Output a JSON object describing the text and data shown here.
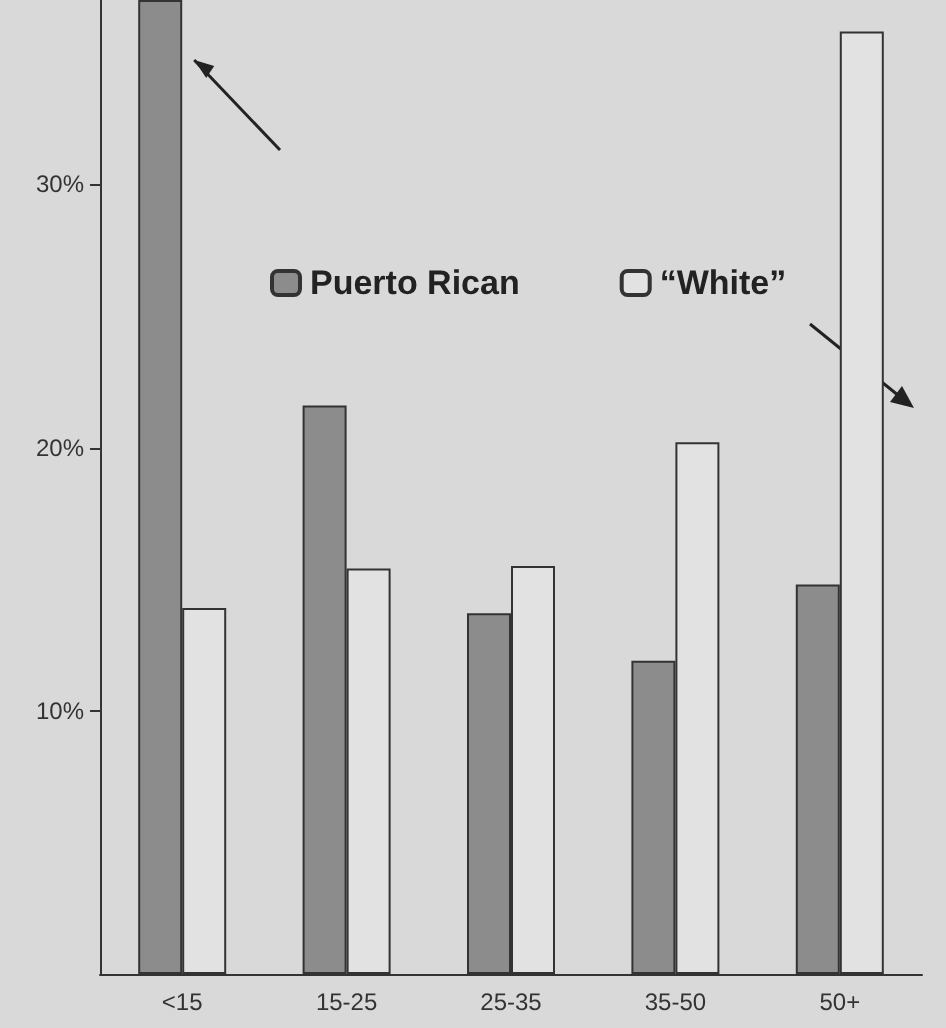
{
  "chart_data": {
    "type": "bar",
    "categories": [
      "<15",
      "15-25",
      "25-35",
      "35-50",
      "50+"
    ],
    "series": [
      {
        "name": "Puerto Rican",
        "color": "#8c8c8c",
        "values": [
          37,
          21.6,
          13.7,
          11.9,
          14.8
        ]
      },
      {
        "name": "“White”",
        "color": "#e2e2e2",
        "values": [
          13.9,
          15.4,
          15.5,
          20.2,
          35.8
        ]
      }
    ],
    "ylim": [
      0,
      37
    ],
    "yticks": [
      {
        "value": 10,
        "label": "10%"
      },
      {
        "value": 20,
        "label": "20%"
      },
      {
        "value": 30,
        "label": "30%"
      }
    ],
    "grid": false,
    "legend": "top"
  }
}
